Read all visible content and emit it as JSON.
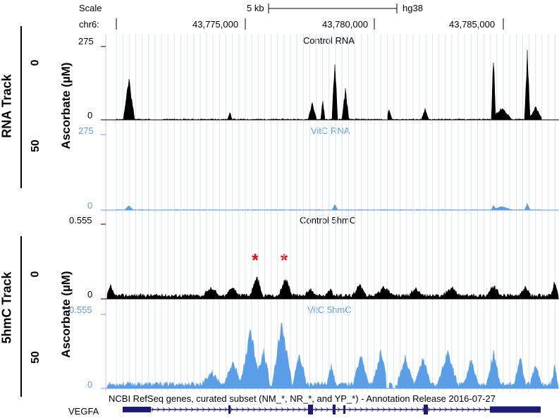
{
  "header": {
    "scale_label": "Scale",
    "scale_value": "5 kb",
    "assembly": "hg38",
    "chrom_label": "chr6:",
    "positions": [
      "43,775,000",
      "43,780,000",
      "43,785,000"
    ]
  },
  "rna_section": {
    "track_label": "RNA Track",
    "axis_label": "Ascorbate (µM)",
    "dose_low": "0",
    "dose_high": "50"
  },
  "hmc_section": {
    "track_label": "5hmC Track",
    "axis_label": "Ascorbate (µM)",
    "dose_low": "0",
    "dose_high": "50"
  },
  "tracks": [
    {
      "name": "Control RNA",
      "ymax": "275",
      "ymin": "0",
      "color": "#000000"
    },
    {
      "name": "VitC RNA",
      "ymax": "275",
      "ymin": "0",
      "color": "#5b9ee8"
    },
    {
      "name": "Control 5hmC",
      "ymax": "0.555",
      "ymin": "0",
      "color": "#000000"
    },
    {
      "name": "VitC 5hmC",
      "ymax": "0.555",
      "ymin": "0",
      "color": "#5b9ee8"
    }
  ],
  "markers": [
    "*",
    "*"
  ],
  "gene_track": {
    "title": "NCBI RefSeq genes, curated subset (NM_*, NR_*, and YP_*) - Annotation Release 2016-07-27",
    "gene_name": "VEGFA",
    "color": "#1c1c74"
  }
}
